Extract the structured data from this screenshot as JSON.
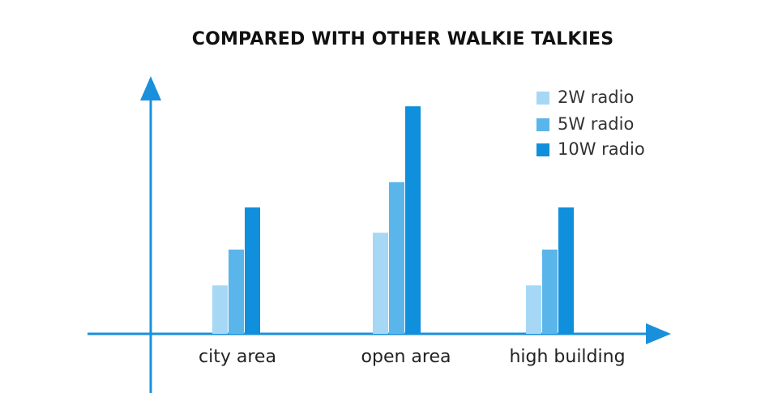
{
  "chart_data": {
    "type": "bar",
    "title": "COMPARED WITH OTHER WALKIE TALKIES",
    "categories": [
      "city area",
      "open area",
      "high building"
    ],
    "series": [
      {
        "name": "2W radio",
        "color": "#a6d8f5",
        "values": [
          2.3,
          4.8,
          2.3
        ]
      },
      {
        "name": "5W radio",
        "color": "#5ab6ea",
        "values": [
          4.0,
          7.2,
          4.0
        ]
      },
      {
        "name": "10W radio",
        "color": "#0f8fdc",
        "values": [
          6.0,
          10.8,
          6.0
        ]
      }
    ],
    "ylim": [
      0,
      12
    ],
    "xlabel": "",
    "ylabel": "",
    "grid": false,
    "legend_position": "top-right",
    "axis_color": "#1a90dc"
  }
}
